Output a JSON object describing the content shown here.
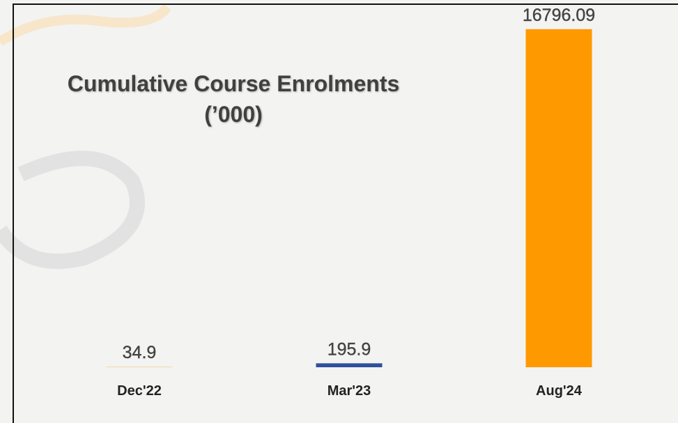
{
  "chart_data": {
    "type": "bar",
    "title": "Cumulative Course Enrolments (’000)",
    "categories": [
      "Dec'22",
      "Mar'23",
      "Aug'24"
    ],
    "values": [
      34.9,
      195.9,
      16796.09
    ],
    "colors": [
      "#f3d9a6",
      "#2f509b",
      "#ff9900"
    ],
    "ylim": [
      0,
      17000
    ]
  }
}
